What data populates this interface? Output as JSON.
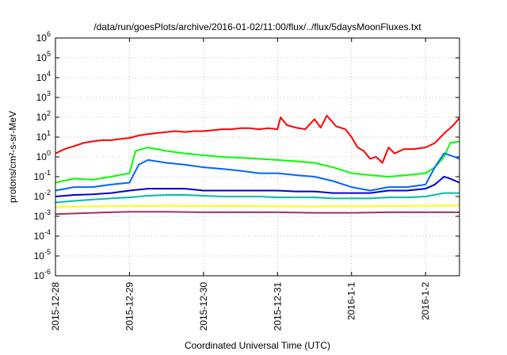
{
  "chart_data": {
    "type": "line",
    "title": "/data/run/goesPlots/archive/2016-01-02/11:00/flux/../flux/5daysMoonFluxes.txt",
    "xlabel": "Coordinated Universal Time (UTC)",
    "ylabel": "protons/cm²-s-sr-MeV",
    "yscale": "log",
    "ylim": [
      1e-06,
      1000000.0
    ],
    "xlim": [
      "2015-12-28",
      "2016-01-02T11:00"
    ],
    "grid": true,
    "x_ticks": [
      "2015-12-28",
      "2015-12-29",
      "2015-12-30",
      "2015-12-31",
      "2016-1-1",
      "2016-1-2"
    ],
    "y_ticks": [
      {
        "base": "10",
        "exp": "-6"
      },
      {
        "base": "10",
        "exp": "-5"
      },
      {
        "base": "10",
        "exp": "-4"
      },
      {
        "base": "10",
        "exp": "-3"
      },
      {
        "base": "10",
        "exp": "-2"
      },
      {
        "base": "10",
        "exp": "-1"
      },
      {
        "base": "10",
        "exp": "0"
      },
      {
        "base": "10",
        "exp": "1"
      },
      {
        "base": "10",
        "exp": "2"
      },
      {
        "base": "10",
        "exp": "3"
      },
      {
        "base": "10",
        "exp": "4"
      },
      {
        "base": "10",
        "exp": "5"
      },
      {
        "base": "10",
        "exp": "6"
      }
    ],
    "series": [
      {
        "color": "#ff0000",
        "values": [
          [
            "2015-12-28T00:00",
            1.5
          ],
          [
            "2015-12-28T03:00",
            2.5
          ],
          [
            "2015-12-28T06:00",
            3.5
          ],
          [
            "2015-12-28T09:00",
            5
          ],
          [
            "2015-12-28T12:00",
            6
          ],
          [
            "2015-12-28T15:00",
            7
          ],
          [
            "2015-12-28T18:00",
            7
          ],
          [
            "2015-12-28T21:00",
            8
          ],
          [
            "2015-12-29T00:00",
            9
          ],
          [
            "2015-12-29T03:00",
            12
          ],
          [
            "2015-12-29T06:00",
            14
          ],
          [
            "2015-12-29T09:00",
            16
          ],
          [
            "2015-12-29T12:00",
            18
          ],
          [
            "2015-12-29T15:00",
            20
          ],
          [
            "2015-12-29T18:00",
            18
          ],
          [
            "2015-12-29T21:00",
            20
          ],
          [
            "2015-12-30T00:00",
            20
          ],
          [
            "2015-12-30T03:00",
            22
          ],
          [
            "2015-12-30T06:00",
            25
          ],
          [
            "2015-12-30T09:00",
            25
          ],
          [
            "2015-12-30T12:00",
            28
          ],
          [
            "2015-12-30T15:00",
            28
          ],
          [
            "2015-12-30T18:00",
            25
          ],
          [
            "2015-12-30T21:00",
            28
          ],
          [
            "2015-12-31T00:00",
            25
          ],
          [
            "2015-12-31T01:00",
            100
          ],
          [
            "2015-12-31T03:00",
            40
          ],
          [
            "2015-12-31T06:00",
            30
          ],
          [
            "2015-12-31T09:00",
            25
          ],
          [
            "2015-12-31T12:00",
            80
          ],
          [
            "2015-12-31T14:00",
            30
          ],
          [
            "2015-12-31T16:00",
            120
          ],
          [
            "2015-12-31T19:00",
            35
          ],
          [
            "2015-12-31T22:00",
            25
          ],
          [
            "2016-01-01T00:00",
            10
          ],
          [
            "2016-01-01T02:00",
            3
          ],
          [
            "2016-01-01T04:00",
            2
          ],
          [
            "2016-01-01T06:00",
            0.8
          ],
          [
            "2016-01-01T08:00",
            1
          ],
          [
            "2016-01-01T10:00",
            0.5
          ],
          [
            "2016-01-01T12:00",
            3
          ],
          [
            "2016-01-01T14:00",
            1.5
          ],
          [
            "2016-01-01T17:00",
            2.5
          ],
          [
            "2016-01-01T20:00",
            2.5
          ],
          [
            "2016-01-02T00:00",
            3
          ],
          [
            "2016-01-02T03:00",
            5
          ],
          [
            "2016-01-02T06:00",
            15
          ],
          [
            "2016-01-02T09:00",
            40
          ],
          [
            "2016-01-02T11:00",
            90
          ]
        ]
      },
      {
        "color": "#00ff00",
        "values": [
          [
            "2015-12-28T00:00",
            0.05
          ],
          [
            "2015-12-28T06:00",
            0.08
          ],
          [
            "2015-12-28T12:00",
            0.07
          ],
          [
            "2015-12-28T18:00",
            0.1
          ],
          [
            "2015-12-29T00:00",
            0.15
          ],
          [
            "2015-12-29T02:00",
            2
          ],
          [
            "2015-12-29T06:00",
            3
          ],
          [
            "2015-12-29T12:00",
            2
          ],
          [
            "2015-12-29T18:00",
            1.5
          ],
          [
            "2015-12-30T00:00",
            1.2
          ],
          [
            "2015-12-30T06:00",
            1
          ],
          [
            "2015-12-30T12:00",
            0.9
          ],
          [
            "2015-12-30T18:00",
            0.8
          ],
          [
            "2015-12-31T00:00",
            0.7
          ],
          [
            "2015-12-31T06:00",
            0.6
          ],
          [
            "2015-12-31T12:00",
            0.5
          ],
          [
            "2015-12-31T18:00",
            0.3
          ],
          [
            "2016-01-01T00:00",
            0.15
          ],
          [
            "2016-01-01T06:00",
            0.12
          ],
          [
            "2016-01-01T12:00",
            0.1
          ],
          [
            "2016-01-01T18:00",
            0.12
          ],
          [
            "2016-01-02T00:00",
            0.15
          ],
          [
            "2016-01-02T03:00",
            0.3
          ],
          [
            "2016-01-02T06:00",
            1
          ],
          [
            "2016-01-02T08:00",
            5
          ],
          [
            "2016-01-02T11:00",
            6
          ]
        ]
      },
      {
        "color": "#0066ff",
        "values": [
          [
            "2015-12-28T00:00",
            0.02
          ],
          [
            "2015-12-28T06:00",
            0.03
          ],
          [
            "2015-12-28T12:00",
            0.03
          ],
          [
            "2015-12-28T18:00",
            0.04
          ],
          [
            "2015-12-29T00:00",
            0.05
          ],
          [
            "2015-12-29T03:00",
            0.4
          ],
          [
            "2015-12-29T06:00",
            0.7
          ],
          [
            "2015-12-29T12:00",
            0.5
          ],
          [
            "2015-12-29T18:00",
            0.4
          ],
          [
            "2015-12-30T00:00",
            0.3
          ],
          [
            "2015-12-30T06:00",
            0.25
          ],
          [
            "2015-12-30T12:00",
            0.2
          ],
          [
            "2015-12-30T18:00",
            0.15
          ],
          [
            "2015-12-31T00:00",
            0.15
          ],
          [
            "2015-12-31T06:00",
            0.12
          ],
          [
            "2015-12-31T12:00",
            0.1
          ],
          [
            "2015-12-31T18:00",
            0.06
          ],
          [
            "2016-01-01T00:00",
            0.03
          ],
          [
            "2016-01-01T06:00",
            0.02
          ],
          [
            "2016-01-01T12:00",
            0.03
          ],
          [
            "2016-01-01T18:00",
            0.03
          ],
          [
            "2016-01-02T00:00",
            0.04
          ],
          [
            "2016-01-02T03:00",
            0.3
          ],
          [
            "2016-01-02T06:00",
            1.5
          ],
          [
            "2016-01-02T08:00",
            1.2
          ],
          [
            "2016-01-02T11:00",
            0.8
          ]
        ]
      },
      {
        "color": "#0000cc",
        "values": [
          [
            "2015-12-28T00:00",
            0.01
          ],
          [
            "2015-12-28T06:00",
            0.012
          ],
          [
            "2015-12-28T12:00",
            0.013
          ],
          [
            "2015-12-28T18:00",
            0.015
          ],
          [
            "2015-12-29T00:00",
            0.02
          ],
          [
            "2015-12-29T06:00",
            0.025
          ],
          [
            "2015-12-29T12:00",
            0.025
          ],
          [
            "2015-12-29T18:00",
            0.025
          ],
          [
            "2015-12-30T00:00",
            0.02
          ],
          [
            "2015-12-30T06:00",
            0.02
          ],
          [
            "2015-12-30T12:00",
            0.02
          ],
          [
            "2015-12-30T18:00",
            0.02
          ],
          [
            "2015-12-31T00:00",
            0.02
          ],
          [
            "2015-12-31T06:00",
            0.018
          ],
          [
            "2015-12-31T12:00",
            0.018
          ],
          [
            "2015-12-31T18:00",
            0.015
          ],
          [
            "2016-01-01T00:00",
            0.015
          ],
          [
            "2016-01-01T06:00",
            0.015
          ],
          [
            "2016-01-01T12:00",
            0.02
          ],
          [
            "2016-01-01T18:00",
            0.02
          ],
          [
            "2016-01-02T00:00",
            0.025
          ],
          [
            "2016-01-02T03:00",
            0.04
          ],
          [
            "2016-01-02T06:00",
            0.1
          ],
          [
            "2016-01-02T08:00",
            0.08
          ],
          [
            "2016-01-02T11:00",
            0.05
          ]
        ]
      },
      {
        "color": "#00c0a0",
        "values": [
          [
            "2015-12-28T00:00",
            0.005
          ],
          [
            "2015-12-28T06:00",
            0.006
          ],
          [
            "2015-12-28T12:00",
            0.007
          ],
          [
            "2015-12-28T18:00",
            0.008
          ],
          [
            "2015-12-29T00:00",
            0.009
          ],
          [
            "2015-12-29T06:00",
            0.011
          ],
          [
            "2015-12-29T12:00",
            0.012
          ],
          [
            "2015-12-29T18:00",
            0.012
          ],
          [
            "2015-12-30T00:00",
            0.011
          ],
          [
            "2015-12-30T06:00",
            0.01
          ],
          [
            "2015-12-30T12:00",
            0.01
          ],
          [
            "2015-12-30T18:00",
            0.01
          ],
          [
            "2015-12-31T00:00",
            0.009
          ],
          [
            "2015-12-31T06:00",
            0.009
          ],
          [
            "2015-12-31T12:00",
            0.009
          ],
          [
            "2015-12-31T18:00",
            0.008
          ],
          [
            "2016-01-01T00:00",
            0.008
          ],
          [
            "2016-01-01T06:00",
            0.008
          ],
          [
            "2016-01-01T12:00",
            0.009
          ],
          [
            "2016-01-01T18:00",
            0.009
          ],
          [
            "2016-01-02T00:00",
            0.01
          ],
          [
            "2016-01-02T06:00",
            0.015
          ],
          [
            "2016-01-02T11:00",
            0.015
          ]
        ]
      },
      {
        "color": "#ffff00",
        "values": [
          [
            "2015-12-28T00:00",
            0.003
          ],
          [
            "2015-12-28T12:00",
            0.0032
          ],
          [
            "2015-12-29T00:00",
            0.0033
          ],
          [
            "2015-12-29T12:00",
            0.0034
          ],
          [
            "2015-12-30T00:00",
            0.0033
          ],
          [
            "2015-12-30T12:00",
            0.0033
          ],
          [
            "2015-12-31T00:00",
            0.0032
          ],
          [
            "2015-12-31T12:00",
            0.0032
          ],
          [
            "2016-01-01T00:00",
            0.0032
          ],
          [
            "2016-01-01T12:00",
            0.0033
          ],
          [
            "2016-01-02T00:00",
            0.0034
          ],
          [
            "2016-01-02T11:00",
            0.0035
          ]
        ]
      },
      {
        "color": "#993366",
        "values": [
          [
            "2015-12-28T00:00",
            0.0013
          ],
          [
            "2015-12-28T12:00",
            0.0015
          ],
          [
            "2015-12-29T00:00",
            0.0017
          ],
          [
            "2015-12-29T12:00",
            0.0017
          ],
          [
            "2015-12-30T00:00",
            0.0016
          ],
          [
            "2015-12-30T12:00",
            0.0016
          ],
          [
            "2015-12-31T00:00",
            0.0016
          ],
          [
            "2015-12-31T12:00",
            0.0015
          ],
          [
            "2016-01-01T00:00",
            0.0015
          ],
          [
            "2016-01-01T12:00",
            0.0016
          ],
          [
            "2016-01-02T00:00",
            0.0016
          ],
          [
            "2016-01-02T11:00",
            0.0016
          ]
        ]
      }
    ]
  }
}
